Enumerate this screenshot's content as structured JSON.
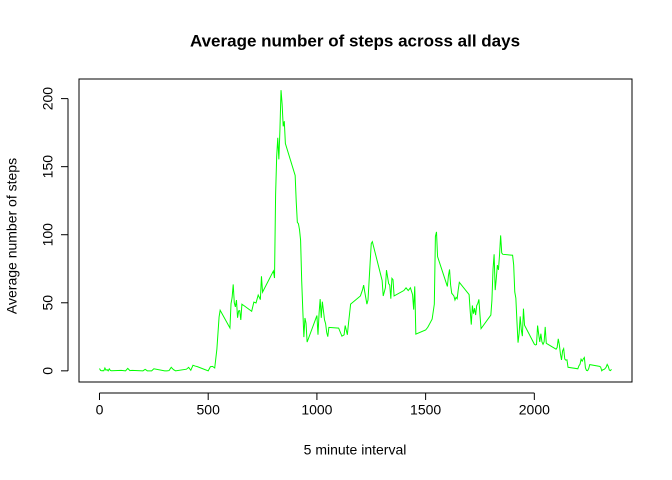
{
  "chart_data": {
    "type": "line",
    "title": "Average number of steps across all days",
    "xlabel": "5 minute interval",
    "ylabel": "Average number of steps",
    "color": "#00ff00",
    "x": [
      0,
      5,
      10,
      15,
      20,
      25,
      30,
      35,
      40,
      45,
      50,
      55,
      100,
      110,
      120,
      130,
      140,
      150,
      200,
      210,
      220,
      230,
      240,
      250,
      300,
      310,
      320,
      330,
      340,
      350,
      400,
      410,
      420,
      430,
      440,
      450,
      500,
      510,
      520,
      530,
      540,
      550,
      555,
      600,
      605,
      610,
      615,
      620,
      625,
      630,
      635,
      640,
      645,
      650,
      655,
      700,
      710,
      720,
      730,
      740,
      745,
      750,
      800,
      805,
      810,
      815,
      820,
      825,
      830,
      835,
      840,
      845,
      850,
      855,
      900,
      905,
      910,
      915,
      920,
      925,
      930,
      935,
      940,
      945,
      950,
      955,
      1000,
      1005,
      1010,
      1015,
      1020,
      1025,
      1030,
      1035,
      1040,
      1045,
      1050,
      1055,
      1100,
      1115,
      1125,
      1130,
      1140,
      1145,
      1155,
      1200,
      1210,
      1215,
      1220,
      1230,
      1235,
      1245,
      1250,
      1255,
      1300,
      1305,
      1310,
      1315,
      1320,
      1330,
      1335,
      1340,
      1345,
      1350,
      1355,
      1400,
      1410,
      1420,
      1430,
      1440,
      1445,
      1450,
      1455,
      1500,
      1510,
      1520,
      1530,
      1540,
      1545,
      1550,
      1555,
      1600,
      1605,
      1610,
      1615,
      1620,
      1625,
      1630,
      1635,
      1640,
      1645,
      1650,
      1655,
      1700,
      1705,
      1710,
      1715,
      1720,
      1725,
      1730,
      1735,
      1740,
      1745,
      1750,
      1755,
      1800,
      1805,
      1810,
      1815,
      1820,
      1825,
      1830,
      1835,
      1840,
      1845,
      1850,
      1855,
      1900,
      1905,
      1910,
      1915,
      1920,
      1925,
      1930,
      1935,
      1940,
      1945,
      1950,
      1955,
      2000,
      2005,
      2010,
      2015,
      2020,
      2025,
      2030,
      2035,
      2040,
      2045,
      2050,
      2055,
      2100,
      2105,
      2110,
      2115,
      2120,
      2125,
      2130,
      2135,
      2140,
      2145,
      2150,
      2155,
      2200,
      2205,
      2210,
      2215,
      2220,
      2225,
      2230,
      2235,
      2240,
      2245,
      2250,
      2255,
      2300,
      2305,
      2310,
      2315,
      2320,
      2325,
      2330,
      2335,
      2340,
      2345,
      2350,
      2355
    ],
    "values": [
      1.7,
      0.3,
      0.1,
      0.2,
      0.1,
      2.1,
      0.5,
      0.9,
      0,
      1.5,
      0.3,
      0.1,
      0.3,
      0.2,
      0,
      1.8,
      0.2,
      0.3,
      0,
      1.1,
      0,
      0,
      0,
      1.5,
      0,
      0,
      0.2,
      2.6,
      0.9,
      0,
      1.2,
      2.6,
      0.4,
      4.1,
      3.5,
      3.1,
      0,
      3.0,
      3.3,
      2.1,
      16,
      39.5,
      44.5,
      31.5,
      49.3,
      53.8,
      63.5,
      50,
      47,
      52,
      39,
      44,
      44.2,
      37.4,
      49,
      43.8,
      50.5,
      49.9,
      55.7,
      52.3,
      69.5,
      57.8,
      73.4,
      68.2,
      129.4,
      157.5,
      171.2,
      155.4,
      177.3,
      206.2,
      195.9,
      179.6,
      183.4,
      167,
      143.5,
      124,
      109.1,
      108.1,
      103.7,
      95.9,
      66.2,
      45.2,
      24.8,
      38.8,
      34.9,
      21.1,
      40.6,
      26.5,
      42.4,
      52.7,
      38.9,
      50.8,
      44.3,
      37.4,
      34.7,
      28.3,
      25.1,
      31.9,
      31.4,
      25.5,
      26.5,
      33.3,
      26.5,
      34.4,
      49,
      55,
      59.6,
      63,
      58,
      49,
      52,
      80,
      93.5,
      94.9,
      66.4,
      55,
      58,
      61,
      74,
      64,
      63,
      53,
      68,
      67,
      55,
      59,
      61,
      59,
      61,
      56,
      45,
      62,
      27,
      30,
      32,
      35,
      38,
      49,
      98.7,
      102.1,
      83.9,
      62,
      70,
      74.5,
      63,
      57,
      56,
      55,
      52,
      54,
      53,
      59.5,
      65,
      56,
      44,
      34,
      48,
      42,
      46,
      41,
      48,
      49.5,
      52.5,
      41,
      31,
      41,
      52,
      74.7,
      85.6,
      59.3,
      67.8,
      77.7,
      74.2,
      85.3,
      99.5,
      86.6,
      85.6,
      84.9,
      77.8,
      58,
      53.4,
      36.3,
      20.7,
      27.4,
      40,
      30.2,
      25.5,
      45.7,
      33.5,
      19.6,
      19,
      19.3,
      33.3,
      26.8,
      21.2,
      27.3,
      21.3,
      19.5,
      21.3,
      32.3,
      20.2,
      15.9,
      17.2,
      23.5,
      19.2,
      12.5,
      8,
      14.7,
      16.3,
      8.7,
      7.8,
      8.1,
      2.6,
      1.5,
      3.7,
      4.8,
      8.5,
      7.1,
      8.7,
      9.8,
      2.2,
      0.3,
      0.1,
      1.6,
      4.6,
      3.3,
      2.8,
      0,
      0.8,
      1,
      1.6,
      2.6,
      4.7,
      3.3,
      0.6,
      0.2,
      1.1
    ],
    "xlim": [
      -94.2,
      2449.2
    ],
    "ylim": [
      -8.2,
      214.4
    ],
    "xticks": [
      0,
      500,
      1000,
      1500,
      2000
    ],
    "yticks": [
      0,
      50,
      100,
      150,
      200
    ]
  }
}
